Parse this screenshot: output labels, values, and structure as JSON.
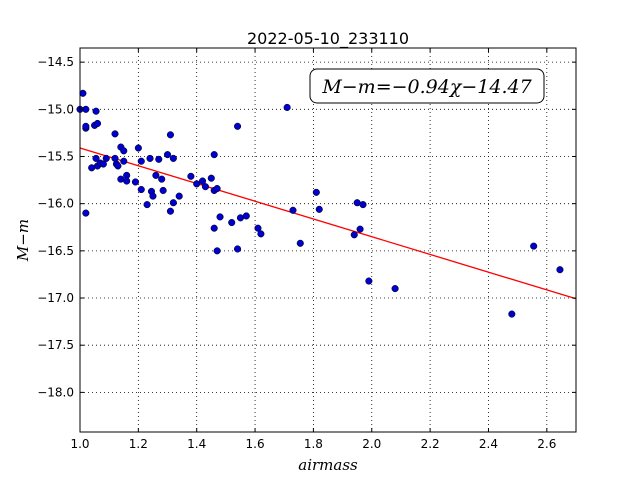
{
  "chart_data": {
    "type": "scatter",
    "title": "2022-05-10_233110",
    "xlabel": "airmass",
    "ylabel": "M−m",
    "xlim": [
      1.0,
      2.7
    ],
    "ylim": [
      -18.42,
      -14.35
    ],
    "y_inverted": true,
    "grid": true,
    "grid_style": "dotted",
    "legend_placement": "top-right",
    "annotation": "M−m=−0.94χ−14.47",
    "x_ticks": [
      1.0,
      1.2,
      1.4,
      1.6,
      1.8,
      2.0,
      2.2,
      2.4,
      2.6
    ],
    "x_tick_labels": [
      "1.0",
      "1.2",
      "1.4",
      "1.6",
      "1.8",
      "2.0",
      "2.2",
      "2.4",
      "2.6"
    ],
    "y_ticks": [
      -14.5,
      -15.0,
      -15.5,
      -16.0,
      -16.5,
      -17.0,
      -17.5,
      -18.0
    ],
    "y_tick_labels": [
      "−14.5",
      "−15.0",
      "−15.5",
      "−16.0",
      "−16.5",
      "−17.0",
      "−17.5",
      "−18.0"
    ],
    "fit": {
      "slope": -0.94,
      "intercept": -14.47,
      "color": "#ff0000"
    },
    "point_color": "#0000cc",
    "points": [
      [
        1.01,
        -14.83
      ],
      [
        1.02,
        -15.0
      ],
      [
        1.0,
        -15.0
      ],
      [
        1.02,
        -15.2
      ],
      [
        1.02,
        -15.18
      ],
      [
        1.04,
        -15.62
      ],
      [
        1.02,
        -16.1
      ],
      [
        1.05,
        -15.17
      ],
      [
        1.06,
        -15.15
      ],
      [
        1.055,
        -15.02
      ],
      [
        1.055,
        -15.52
      ],
      [
        1.06,
        -15.6
      ],
      [
        1.07,
        -15.57
      ],
      [
        1.08,
        -15.58
      ],
      [
        1.09,
        -15.52
      ],
      [
        1.12,
        -15.26
      ],
      [
        1.12,
        -15.52
      ],
      [
        1.125,
        -15.58
      ],
      [
        1.13,
        -15.6
      ],
      [
        1.14,
        -15.4
      ],
      [
        1.14,
        -15.74
      ],
      [
        1.15,
        -15.44
      ],
      [
        1.15,
        -15.55
      ],
      [
        1.16,
        -15.7
      ],
      [
        1.16,
        -15.76
      ],
      [
        1.19,
        -15.77
      ],
      [
        1.2,
        -15.41
      ],
      [
        1.21,
        -15.55
      ],
      [
        1.21,
        -15.85
      ],
      [
        1.23,
        -16.01
      ],
      [
        1.24,
        -15.52
      ],
      [
        1.245,
        -15.87
      ],
      [
        1.25,
        -15.92
      ],
      [
        1.26,
        -15.7
      ],
      [
        1.27,
        -15.53
      ],
      [
        1.28,
        -15.74
      ],
      [
        1.285,
        -15.86
      ],
      [
        1.3,
        -15.48
      ],
      [
        1.31,
        -15.27
      ],
      [
        1.31,
        -16.08
      ],
      [
        1.32,
        -15.52
      ],
      [
        1.32,
        -15.99
      ],
      [
        1.34,
        -15.92
      ],
      [
        1.38,
        -15.71
      ],
      [
        1.4,
        -15.79
      ],
      [
        1.42,
        -15.76
      ],
      [
        1.43,
        -15.82
      ],
      [
        1.45,
        -15.73
      ],
      [
        1.46,
        -15.48
      ],
      [
        1.46,
        -15.86
      ],
      [
        1.46,
        -16.26
      ],
      [
        1.47,
        -15.84
      ],
      [
        1.47,
        -16.5
      ],
      [
        1.48,
        -16.14
      ],
      [
        1.52,
        -16.2
      ],
      [
        1.54,
        -15.18
      ],
      [
        1.54,
        -16.48
      ],
      [
        1.55,
        -16.15
      ],
      [
        1.57,
        -16.13
      ],
      [
        1.61,
        -16.26
      ],
      [
        1.62,
        -16.32
      ],
      [
        1.71,
        -14.98
      ],
      [
        1.73,
        -16.07
      ],
      [
        1.755,
        -16.42
      ],
      [
        1.81,
        -15.88
      ],
      [
        1.82,
        -16.06
      ],
      [
        1.94,
        -16.33
      ],
      [
        1.95,
        -15.99
      ],
      [
        1.96,
        -16.27
      ],
      [
        1.97,
        -16.01
      ],
      [
        1.99,
        -16.82
      ],
      [
        2.08,
        -16.9
      ],
      [
        2.48,
        -17.17
      ],
      [
        2.555,
        -16.45
      ],
      [
        2.645,
        -16.7
      ]
    ]
  }
}
